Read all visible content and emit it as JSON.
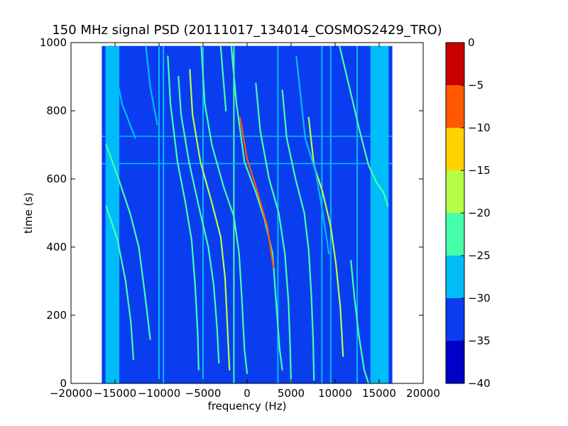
{
  "chart_data": {
    "type": "heatmap",
    "title": "150 MHz signal PSD (20111017_134014_COSMOS2429_TRO)",
    "xlabel": "frequency (Hz)",
    "ylabel": "time (s)",
    "xlim": [
      -20000,
      20000
    ],
    "ylim": [
      0,
      1000
    ],
    "x_ticks": [
      "−20000",
      "−15000",
      "−10000",
      "−5000",
      "0",
      "5000",
      "10000",
      "15000",
      "20000"
    ],
    "y_ticks": [
      "0",
      "200",
      "400",
      "600",
      "800",
      "1000"
    ],
    "data_extent": {
      "freq_min": -16500,
      "freq_max": 16500,
      "time_min": 0,
      "time_max": 990
    },
    "colorbar": {
      "label": "",
      "ticks": [
        "0",
        "−5",
        "−10",
        "−15",
        "−20",
        "−25",
        "−30",
        "−35",
        "−40"
      ],
      "levels": [
        -40,
        -35,
        -30,
        -25,
        -20,
        -15,
        -10,
        -5,
        0
      ],
      "colors": [
        "#0000c8",
        "#0a3cf0",
        "#00bcf8",
        "#46ffaa",
        "#b4ff46",
        "#ffd200",
        "#ff5a00",
        "#c80000"
      ]
    },
    "background_level": -32,
    "inner_band": {
      "freq_range": [
        -14500,
        14000
      ],
      "level": -33
    },
    "outer_band": {
      "freq_range": [
        [
          -16000,
          -14500
        ],
        [
          14000,
          16000
        ]
      ],
      "level": -28
    },
    "horizontal_lines": [
      {
        "time": 725,
        "level": -27
      },
      {
        "time": 645,
        "level": -27
      }
    ],
    "vertical_lines": [
      {
        "freq": -16000,
        "level": -26
      },
      {
        "freq": -10000,
        "level": -28
      },
      {
        "freq": -9500,
        "level": -27
      },
      {
        "freq": -5000,
        "level": -28
      },
      {
        "freq": -1500,
        "level": -24
      },
      {
        "freq": 3500,
        "level": -28
      },
      {
        "freq": 8500,
        "level": -28
      },
      {
        "freq": 9500,
        "level": -28
      },
      {
        "freq": 12500,
        "level": -29
      },
      {
        "freq": 16000,
        "level": -26
      }
    ],
    "series": [
      {
        "level": -22,
        "points": [
          [
            -1800,
            990
          ],
          [
            -1200,
            820
          ],
          [
            -300,
            650
          ],
          [
            1000,
            560
          ],
          [
            2000,
            480
          ],
          [
            2900,
            380
          ],
          [
            3400,
            200
          ],
          [
            3700,
            100
          ],
          [
            4000,
            40
          ]
        ]
      },
      {
        "level": -10,
        "points": [
          [
            -800,
            780
          ],
          [
            0,
            660
          ],
          [
            1200,
            560
          ],
          [
            2300,
            460
          ],
          [
            3000,
            340
          ]
        ]
      },
      {
        "level": -22,
        "points": [
          [
            -5200,
            990
          ],
          [
            -4800,
            820
          ],
          [
            -4000,
            700
          ],
          [
            -2700,
            580
          ],
          [
            -1500,
            490
          ],
          [
            -900,
            380
          ],
          [
            -600,
            250
          ],
          [
            -300,
            100
          ],
          [
            0,
            30
          ]
        ]
      },
      {
        "level": -20,
        "points": [
          [
            -6500,
            920
          ],
          [
            -6200,
            790
          ],
          [
            -5300,
            650
          ],
          [
            -4000,
            530
          ],
          [
            -3000,
            430
          ],
          [
            -2500,
            310
          ],
          [
            -2200,
            150
          ],
          [
            -2000,
            40
          ]
        ]
      },
      {
        "level": -25,
        "points": [
          [
            -7800,
            900
          ],
          [
            -7500,
            790
          ],
          [
            -6600,
            650
          ],
          [
            -5400,
            510
          ],
          [
            -4400,
            400
          ],
          [
            -3800,
            290
          ],
          [
            -3400,
            160
          ],
          [
            -3200,
            60
          ]
        ]
      },
      {
        "level": -22,
        "points": [
          [
            1000,
            880
          ],
          [
            1500,
            740
          ],
          [
            2500,
            600
          ],
          [
            3600,
            500
          ],
          [
            4300,
            380
          ],
          [
            4700,
            240
          ],
          [
            4900,
            100
          ],
          [
            5000,
            0
          ]
        ]
      },
      {
        "level": -22,
        "points": [
          [
            4000,
            860
          ],
          [
            4500,
            720
          ],
          [
            5500,
            600
          ],
          [
            6500,
            500
          ],
          [
            7000,
            390
          ],
          [
            7300,
            260
          ],
          [
            7500,
            130
          ],
          [
            7600,
            10
          ]
        ]
      },
      {
        "level": -20,
        "points": [
          [
            7000,
            780
          ],
          [
            7600,
            640
          ],
          [
            8600,
            560
          ],
          [
            9500,
            460
          ],
          [
            10100,
            350
          ],
          [
            10600,
            220
          ],
          [
            10900,
            80
          ]
        ]
      },
      {
        "level": -24,
        "points": [
          [
            -9000,
            960
          ],
          [
            -8700,
            820
          ],
          [
            -7900,
            650
          ],
          [
            -7000,
            530
          ],
          [
            -6300,
            420
          ],
          [
            -5900,
            290
          ],
          [
            -5600,
            140
          ],
          [
            -5500,
            40
          ]
        ]
      },
      {
        "level": -24,
        "points": [
          [
            -16000,
            700
          ],
          [
            -14600,
            600
          ],
          [
            -13300,
            500
          ],
          [
            -12300,
            400
          ],
          [
            -11600,
            260
          ],
          [
            -11000,
            130
          ]
        ]
      },
      {
        "level": -22,
        "points": [
          [
            -16000,
            520
          ],
          [
            -14700,
            420
          ],
          [
            -13800,
            300
          ],
          [
            -13200,
            180
          ],
          [
            -12900,
            70
          ]
        ]
      },
      {
        "level": -26,
        "points": [
          [
            -15500,
            990
          ],
          [
            -14200,
            820
          ],
          [
            -12700,
            720
          ]
        ]
      },
      {
        "level": -23,
        "points": [
          [
            10500,
            990
          ],
          [
            11700,
            860
          ],
          [
            12800,
            740
          ],
          [
            13800,
            640
          ],
          [
            14700,
            590
          ],
          [
            15500,
            560
          ],
          [
            16000,
            520
          ]
        ]
      },
      {
        "level": -24,
        "points": [
          [
            11800,
            360
          ],
          [
            12200,
            250
          ],
          [
            12700,
            140
          ],
          [
            13300,
            40
          ],
          [
            13800,
            0
          ]
        ]
      },
      {
        "level": -26,
        "points": [
          [
            -11500,
            990
          ],
          [
            -11000,
            870
          ],
          [
            -10200,
            760
          ]
        ]
      },
      {
        "level": -25,
        "points": [
          [
            -3000,
            990
          ],
          [
            -2400,
            800
          ]
        ]
      },
      {
        "level": -26,
        "points": [
          [
            5600,
            960
          ],
          [
            6600,
            720
          ],
          [
            7800,
            620
          ],
          [
            8600,
            500
          ],
          [
            9300,
            380
          ]
        ]
      }
    ]
  }
}
